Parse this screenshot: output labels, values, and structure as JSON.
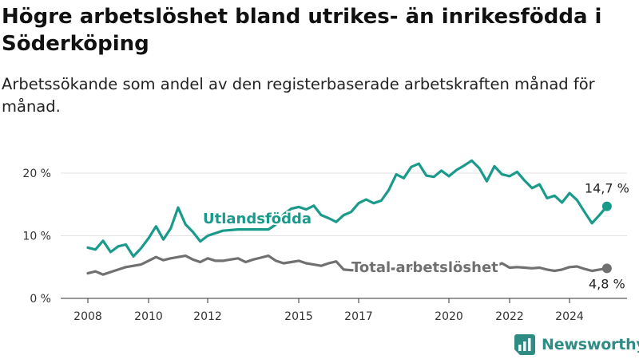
{
  "header": {
    "title": "Högre arbetslöshet bland utrikes- än inrikesfödda i Söderköping",
    "subtitle": "Arbetssökande som andel av den registerbaserade arbetskraften månad för månad."
  },
  "brand": {
    "name": "Newsworthy",
    "color": "#2f8c85"
  },
  "chart_data": {
    "type": "line",
    "title": "Högre arbetslöshet bland utrikes- än inrikesfödda i Söderköping",
    "subtitle": "Arbetssökande som andel av den registerbaserade arbetskraften månad för månad.",
    "x_ticks": [
      "2008",
      "2010",
      "2012",
      "2015",
      "2017",
      "2020",
      "2022",
      "2024"
    ],
    "y_ticks": [
      "0 %",
      "10 %",
      "20 %"
    ],
    "ylim": [
      0,
      24
    ],
    "grid": true,
    "legend": "inline",
    "series": [
      {
        "name": "Utlandsfödda",
        "color": "#1a9a8b",
        "end_label": "14,7 %",
        "points": [
          [
            2008.0,
            8.1
          ],
          [
            2008.25,
            7.8
          ],
          [
            2008.5,
            9.2
          ],
          [
            2008.75,
            7.4
          ],
          [
            2009.0,
            8.3
          ],
          [
            2009.25,
            8.6
          ],
          [
            2009.5,
            6.7
          ],
          [
            2009.75,
            8.0
          ],
          [
            2010.0,
            9.6
          ],
          [
            2010.25,
            11.5
          ],
          [
            2010.5,
            9.4
          ],
          [
            2010.75,
            11.2
          ],
          [
            2011.0,
            14.5
          ],
          [
            2011.25,
            11.8
          ],
          [
            2011.5,
            10.6
          ],
          [
            2011.75,
            9.1
          ],
          [
            2012.0,
            10.0
          ],
          [
            2012.5,
            10.8
          ],
          [
            2013.0,
            11.0
          ],
          [
            2014.0,
            11.0
          ],
          [
            2014.25,
            11.8
          ],
          [
            2014.5,
            13.4
          ],
          [
            2014.75,
            14.3
          ],
          [
            2015.0,
            14.6
          ],
          [
            2015.25,
            14.2
          ],
          [
            2015.5,
            14.8
          ],
          [
            2015.75,
            13.3
          ],
          [
            2016.0,
            12.8
          ],
          [
            2016.25,
            12.2
          ],
          [
            2016.5,
            13.3
          ],
          [
            2016.75,
            13.8
          ],
          [
            2017.0,
            15.2
          ],
          [
            2017.25,
            15.8
          ],
          [
            2017.5,
            15.2
          ],
          [
            2017.75,
            15.6
          ],
          [
            2018.0,
            17.3
          ],
          [
            2018.25,
            19.8
          ],
          [
            2018.5,
            19.2
          ],
          [
            2018.75,
            21.0
          ],
          [
            2019.0,
            21.5
          ],
          [
            2019.25,
            19.6
          ],
          [
            2019.5,
            19.4
          ],
          [
            2019.75,
            20.4
          ],
          [
            2020.0,
            19.5
          ],
          [
            2020.25,
            20.5
          ],
          [
            2020.5,
            21.2
          ],
          [
            2020.75,
            22.0
          ],
          [
            2021.0,
            20.8
          ],
          [
            2021.25,
            18.7
          ],
          [
            2021.5,
            21.1
          ],
          [
            2021.75,
            19.8
          ],
          [
            2022.0,
            19.5
          ],
          [
            2022.25,
            20.2
          ],
          [
            2022.5,
            18.8
          ],
          [
            2022.75,
            17.6
          ],
          [
            2023.0,
            18.2
          ],
          [
            2023.25,
            16.0
          ],
          [
            2023.5,
            16.4
          ],
          [
            2023.75,
            15.3
          ],
          [
            2024.0,
            16.8
          ],
          [
            2024.25,
            15.7
          ],
          [
            2024.5,
            13.8
          ],
          [
            2024.75,
            12.0
          ],
          [
            2025.0,
            13.3
          ],
          [
            2025.25,
            14.7
          ]
        ]
      },
      {
        "name": "Total arbetslöshet",
        "color": "#707070",
        "end_label": "4,8 %",
        "points": [
          [
            2008.0,
            4.0
          ],
          [
            2008.25,
            4.3
          ],
          [
            2008.5,
            3.8
          ],
          [
            2008.75,
            4.2
          ],
          [
            2009.0,
            4.6
          ],
          [
            2009.25,
            5.0
          ],
          [
            2009.5,
            5.2
          ],
          [
            2009.75,
            5.4
          ],
          [
            2010.0,
            6.0
          ],
          [
            2010.25,
            6.6
          ],
          [
            2010.5,
            6.1
          ],
          [
            2010.75,
            6.4
          ],
          [
            2011.0,
            6.6
          ],
          [
            2011.25,
            6.8
          ],
          [
            2011.5,
            6.2
          ],
          [
            2011.75,
            5.8
          ],
          [
            2012.0,
            6.4
          ],
          [
            2012.25,
            6.0
          ],
          [
            2012.5,
            6.0
          ],
          [
            2012.75,
            6.2
          ],
          [
            2013.0,
            6.4
          ],
          [
            2013.25,
            5.8
          ],
          [
            2013.5,
            6.2
          ],
          [
            2013.75,
            6.5
          ],
          [
            2014.0,
            6.8
          ],
          [
            2014.25,
            6.0
          ],
          [
            2014.5,
            5.6
          ],
          [
            2014.75,
            5.8
          ],
          [
            2015.0,
            6.0
          ],
          [
            2015.25,
            5.6
          ],
          [
            2015.5,
            5.4
          ],
          [
            2015.75,
            5.2
          ],
          [
            2016.0,
            5.6
          ],
          [
            2016.25,
            5.9
          ],
          [
            2016.5,
            4.6
          ],
          [
            2016.75,
            4.5
          ],
          [
            2017.0,
            4.5
          ],
          [
            2017.5,
            4.6
          ],
          [
            2018.0,
            4.7
          ],
          [
            2019.0,
            4.8
          ],
          [
            2020.0,
            5.0
          ],
          [
            2021.0,
            5.1
          ],
          [
            2021.5,
            5.1
          ],
          [
            2021.75,
            5.6
          ],
          [
            2022.0,
            4.9
          ],
          [
            2022.25,
            5.0
          ],
          [
            2022.5,
            4.9
          ],
          [
            2022.75,
            4.8
          ],
          [
            2023.0,
            4.9
          ],
          [
            2023.25,
            4.6
          ],
          [
            2023.5,
            4.4
          ],
          [
            2023.75,
            4.6
          ],
          [
            2024.0,
            5.0
          ],
          [
            2024.25,
            5.1
          ],
          [
            2024.5,
            4.7
          ],
          [
            2024.75,
            4.4
          ],
          [
            2025.0,
            4.6
          ],
          [
            2025.25,
            4.8
          ]
        ]
      }
    ]
  }
}
